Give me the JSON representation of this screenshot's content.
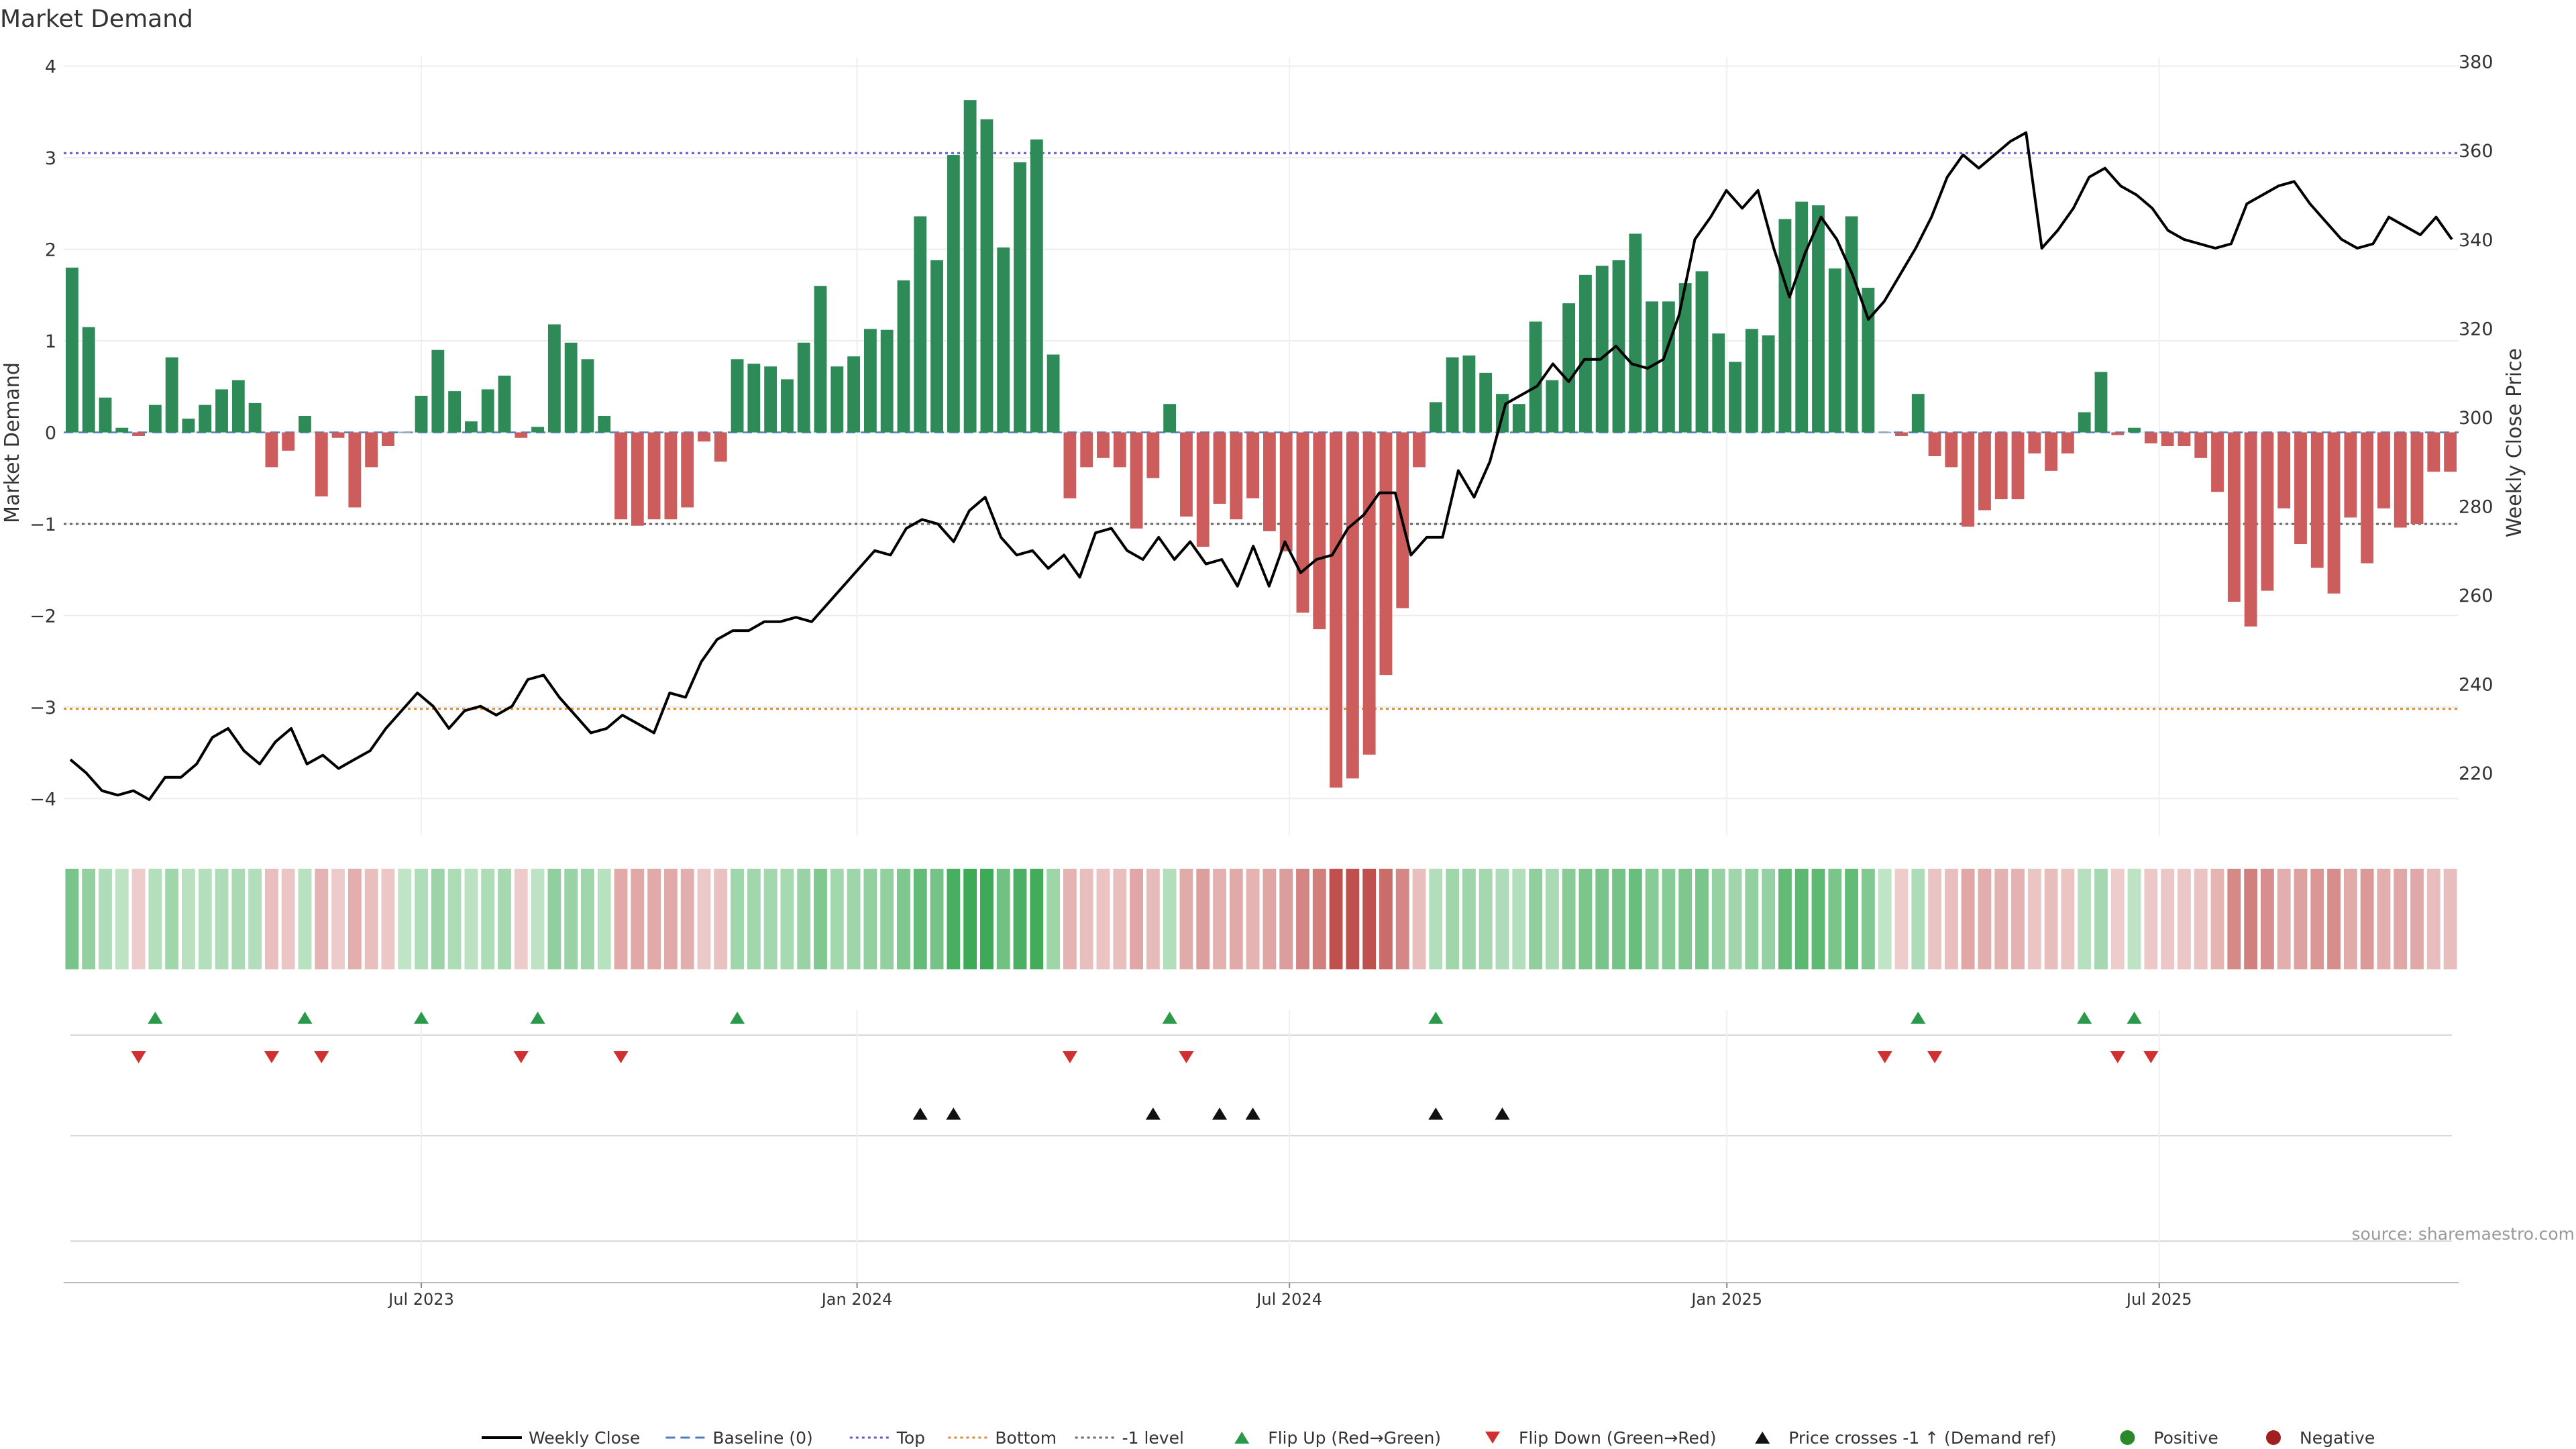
{
  "chart_data": {
    "type": "bar+line",
    "title": "Market Demand",
    "ylabel_left": "Market Demand",
    "ylabel_right": "Weekly Close Price",
    "ylim_left": [
      -4.4,
      4.1
    ],
    "ylim_right": [
      206,
      381
    ],
    "yticks_left": [
      "4",
      "3",
      "2",
      "1",
      "0",
      "−1",
      "−2",
      "−3",
      "−4"
    ],
    "yticks_left_values": [
      4,
      3,
      2,
      1,
      0,
      -1,
      -2,
      -3,
      -4
    ],
    "yticks_right": [
      "380",
      "360",
      "340",
      "320",
      "300",
      "280",
      "260",
      "240",
      "220"
    ],
    "yticks_right_values": [
      380,
      360,
      340,
      320,
      300,
      280,
      260,
      240,
      220
    ],
    "xticks": [
      "Jul 2023",
      "Jan 2024",
      "Jul 2024",
      "Jan 2025",
      "Jul 2025"
    ],
    "xticks_index": [
      21.5,
      47.7,
      73.7,
      100,
      126
    ],
    "reference_lines": {
      "top": 3.05,
      "minus_one": -1,
      "bottom": -3.02,
      "baseline": 0
    },
    "demand": [
      1.8,
      1.15,
      0.38,
      0.05,
      -0.04,
      0.3,
      0.82,
      0.15,
      0.3,
      0.47,
      0.57,
      0.32,
      -0.38,
      -0.2,
      0.18,
      -0.7,
      -0.06,
      -0.82,
      -0.38,
      -0.15,
      0,
      0.4,
      0.9,
      0.45,
      0.12,
      0.47,
      0.62,
      -0.06,
      0.06,
      1.18,
      0.98,
      0.8,
      0.18,
      -0.95,
      -1.02,
      -0.95,
      -0.95,
      -0.82,
      -0.1,
      -0.32,
      0.8,
      0.75,
      0.72,
      0.58,
      0.98,
      1.6,
      0.72,
      0.83,
      1.13,
      1.12,
      1.66,
      2.36,
      1.88,
      3.03,
      3.63,
      3.42,
      2.02,
      2.95,
      3.2,
      0.85,
      -0.72,
      -0.38,
      -0.28,
      -0.38,
      -1.05,
      -0.5,
      0.31,
      -0.92,
      -1.25,
      -0.78,
      -0.95,
      -0.72,
      -1.08,
      -1.3,
      -1.97,
      -2.15,
      -3.88,
      -3.78,
      -3.52,
      -2.65,
      -1.92,
      -0.38,
      0.33,
      0.82,
      0.84,
      0.65,
      0.42,
      0.31,
      1.21,
      0.57,
      1.41,
      1.72,
      1.82,
      1.88,
      2.17,
      1.43,
      1.43,
      1.63,
      1.76,
      1.08,
      0.77,
      1.13,
      1.06,
      2.33,
      2.52,
      2.48,
      1.79,
      2.36,
      1.58,
      0,
      -0.04,
      0.42,
      -0.26,
      -0.38,
      -1.03,
      -0.85,
      -0.73,
      -0.73,
      -0.23,
      -0.42,
      -0.23,
      0.22,
      0.66,
      -0.03,
      0.05,
      -0.12,
      -0.15,
      -0.15,
      -0.28,
      -0.65,
      -1.85,
      -2.12,
      -1.73,
      -0.83,
      -1.22,
      -1.48,
      -1.76,
      -0.93,
      -1.43,
      -0.83,
      -1.04,
      -1.0,
      -0.43,
      -0.43
    ],
    "weekly_close": [
      223,
      220,
      216,
      215,
      216,
      214,
      219,
      219,
      222,
      228,
      230,
      225,
      222,
      227,
      230,
      222,
      224,
      221,
      223,
      225,
      230,
      234,
      238,
      235,
      230,
      234,
      235,
      233,
      235,
      241,
      242,
      237,
      233,
      229,
      230,
      233,
      231,
      229,
      238,
      237,
      245,
      250,
      252,
      252,
      254,
      254,
      255,
      254,
      258,
      262,
      266,
      270,
      269,
      275,
      277,
      276,
      272,
      279,
      282,
      273,
      269,
      270,
      266,
      269,
      264,
      274,
      275,
      270,
      268,
      273,
      268,
      272,
      267,
      268,
      262,
      271,
      262,
      272,
      265,
      268,
      269,
      275,
      278,
      283,
      283,
      269,
      273,
      273,
      288,
      282,
      290,
      303,
      305,
      307,
      312,
      308,
      313,
      313,
      316,
      312,
      311,
      313,
      323,
      340,
      345,
      351,
      347,
      351,
      338,
      327,
      337,
      345,
      340,
      332,
      322,
      326,
      332,
      338,
      345,
      354,
      359,
      356,
      359,
      362,
      364,
      338,
      342,
      347,
      354,
      356,
      352,
      350,
      347,
      342,
      340,
      339,
      338,
      339,
      348,
      350,
      352,
      353,
      348,
      344,
      340,
      338,
      339,
      345,
      343,
      341,
      345,
      340
    ],
    "signals": {
      "flip_up_index": [
        5,
        14,
        21,
        28,
        40,
        66,
        82,
        111,
        121,
        124
      ],
      "flip_down_index": [
        4,
        12,
        15,
        27,
        33,
        60,
        67,
        109,
        112,
        123,
        125
      ],
      "price_crosses_index": [
        51,
        53,
        65,
        69,
        71,
        82,
        86
      ]
    },
    "legend": [
      {
        "label": "Weekly Close",
        "kind": "line",
        "color": "#000000"
      },
      {
        "label": "Baseline (0)",
        "kind": "dash",
        "color": "#4a7ec9"
      },
      {
        "label": "Top",
        "kind": "dot",
        "color": "#5a5acf"
      },
      {
        "label": "Bottom",
        "kind": "dot",
        "color": "#e08a2a"
      },
      {
        "label": "-1 level",
        "kind": "dot",
        "color": "#666666"
      },
      {
        "label": "Flip Up (Red→Green)",
        "kind": "tri-up",
        "color": "#2a9a4a"
      },
      {
        "label": "Flip Down (Green→Red)",
        "kind": "tri-down",
        "color": "#d03030"
      },
      {
        "label": "Price crosses -1 ↑ (Demand ref)",
        "kind": "tri-up",
        "color": "#111111"
      },
      {
        "label": "Positive",
        "kind": "dot-circle",
        "color": "#2a8a2a"
      },
      {
        "label": "Negative",
        "kind": "dot-circle",
        "color": "#a02020"
      }
    ],
    "source": "source: sharemaestro.com"
  },
  "colors": {
    "positive_bar": "#2e8b57",
    "negative_bar": "#cd5c5c",
    "price_line": "#000000",
    "top_line": "#5a5acf",
    "bottom_line": "#e08a2a",
    "minus_one_line": "#666666",
    "baseline": "#4a7ec9"
  }
}
